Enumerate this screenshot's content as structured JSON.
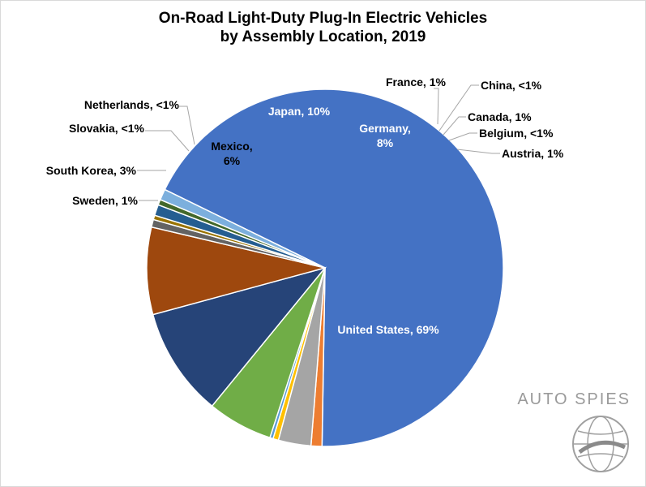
{
  "chart_data": {
    "type": "pie",
    "title_line1": "On-Road Light-Duty Plug-In Electric Vehicles",
    "title_line2": "by Assembly Location, 2019",
    "slices": [
      {
        "name": "United States",
        "value": 69,
        "display": "United States, 69%",
        "color": "#4472C4"
      },
      {
        "name": "Sweden",
        "value": 1,
        "display": "Sweden, 1%",
        "color": "#ED7D31"
      },
      {
        "name": "South Korea",
        "value": 3,
        "display": "South Korea, 3%",
        "color": "#A5A5A5"
      },
      {
        "name": "Slovakia",
        "value": 0.5,
        "display": "Slovakia, <1%",
        "color": "#FFC000"
      },
      {
        "name": "Netherlands",
        "value": 0.3,
        "display": "Netherlands, <1%",
        "color": "#5B9BD5"
      },
      {
        "name": "Mexico",
        "value": 6,
        "display_lines": [
          "Mexico,",
          "6%"
        ],
        "color": "#70AD47"
      },
      {
        "name": "Japan",
        "value": 10,
        "display": "Japan, 10%",
        "color": "#264478"
      },
      {
        "name": "Germany",
        "value": 8,
        "display_lines": [
          "Germany,",
          "8%"
        ],
        "color": "#9E480E"
      },
      {
        "name": "France",
        "value": 0.7,
        "display": "France, 1%",
        "color": "#636363"
      },
      {
        "name": "China",
        "value": 0.4,
        "display": "China, <1%",
        "color": "#997300"
      },
      {
        "name": "Canada",
        "value": 1,
        "display": "Canada, 1%",
        "color": "#255E91"
      },
      {
        "name": "Belgium",
        "value": 0.5,
        "display": "Belgium, <1%",
        "color": "#43682B"
      },
      {
        "name": "Austria",
        "value": 1,
        "display": "Austria, 1%",
        "color": "#7CAFDD"
      }
    ]
  },
  "watermark": {
    "text": "AUTO SPIES"
  }
}
